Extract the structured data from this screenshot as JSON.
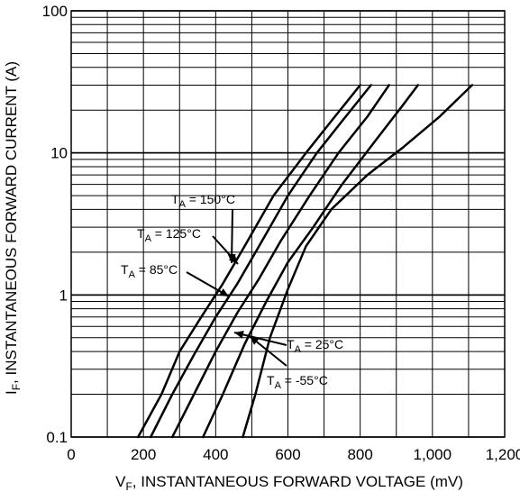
{
  "chart_data": {
    "type": "line",
    "xlabel": {
      "main": "V",
      "sub": "F",
      "rest": ", INSTANTANEOUS FORWARD VOLTAGE (mV)"
    },
    "ylabel": {
      "main": "I",
      "sub": "F",
      "rest": ", INSTANTANEOUS FORWARD CURRENT (A)"
    },
    "x_ticks": [
      "0",
      "200",
      "400",
      "600",
      "800",
      "1,000",
      "1,200"
    ],
    "y_ticks": [
      "0.1",
      "1",
      "10",
      "100"
    ],
    "xlim": [
      0,
      1200
    ],
    "ylim": [
      0.1,
      100
    ],
    "y_scale": "log",
    "grid": true,
    "series": [
      {
        "name": "150°C",
        "label": {
          "T": "T",
          "sub": "A",
          "rest": " = 150°C"
        },
        "x": [
          185,
          250,
          300,
          360,
          420,
          480,
          560,
          650,
          730,
          800
        ],
        "y": [
          0.1,
          0.2,
          0.4,
          0.7,
          1.2,
          2.2,
          5,
          10,
          18,
          30
        ]
      },
      {
        "name": "125°C",
        "label": {
          "T": "T",
          "sub": "A",
          "rest": " = 125°C"
        },
        "x": [
          220,
          280,
          340,
          400,
          460,
          520,
          600,
          680,
          760,
          830
        ],
        "y": [
          0.1,
          0.2,
          0.38,
          0.7,
          1.2,
          2.2,
          5,
          10,
          18,
          30
        ]
      },
      {
        "name": "85°C",
        "label": {
          "T": "T",
          "sub": "A",
          "rest": " = 85°C"
        },
        "x": [
          280,
          340,
          400,
          460,
          520,
          580,
          660,
          740,
          820,
          880
        ],
        "y": [
          0.1,
          0.2,
          0.4,
          0.75,
          1.3,
          2.4,
          5,
          10,
          18,
          30
        ]
      },
      {
        "name": "25°C",
        "label": {
          "T": "T",
          "sub": "A",
          "rest": " = 25°C"
        },
        "x": [
          365,
          420,
          480,
          540,
          600,
          670,
          750,
          840,
          920,
          960
        ],
        "y": [
          0.1,
          0.2,
          0.45,
          0.9,
          1.7,
          3,
          6,
          12,
          22,
          30
        ]
      },
      {
        "name": "-55°C",
        "label": {
          "T": "T",
          "sub": "A",
          "rest": " = -55°C"
        },
        "x": [
          475,
          510,
          550,
          600,
          650,
          720,
          820,
          920,
          1020,
          1110
        ],
        "y": [
          0.1,
          0.2,
          0.5,
          1.1,
          2.2,
          4,
          7,
          11,
          18,
          30
        ]
      }
    ]
  }
}
